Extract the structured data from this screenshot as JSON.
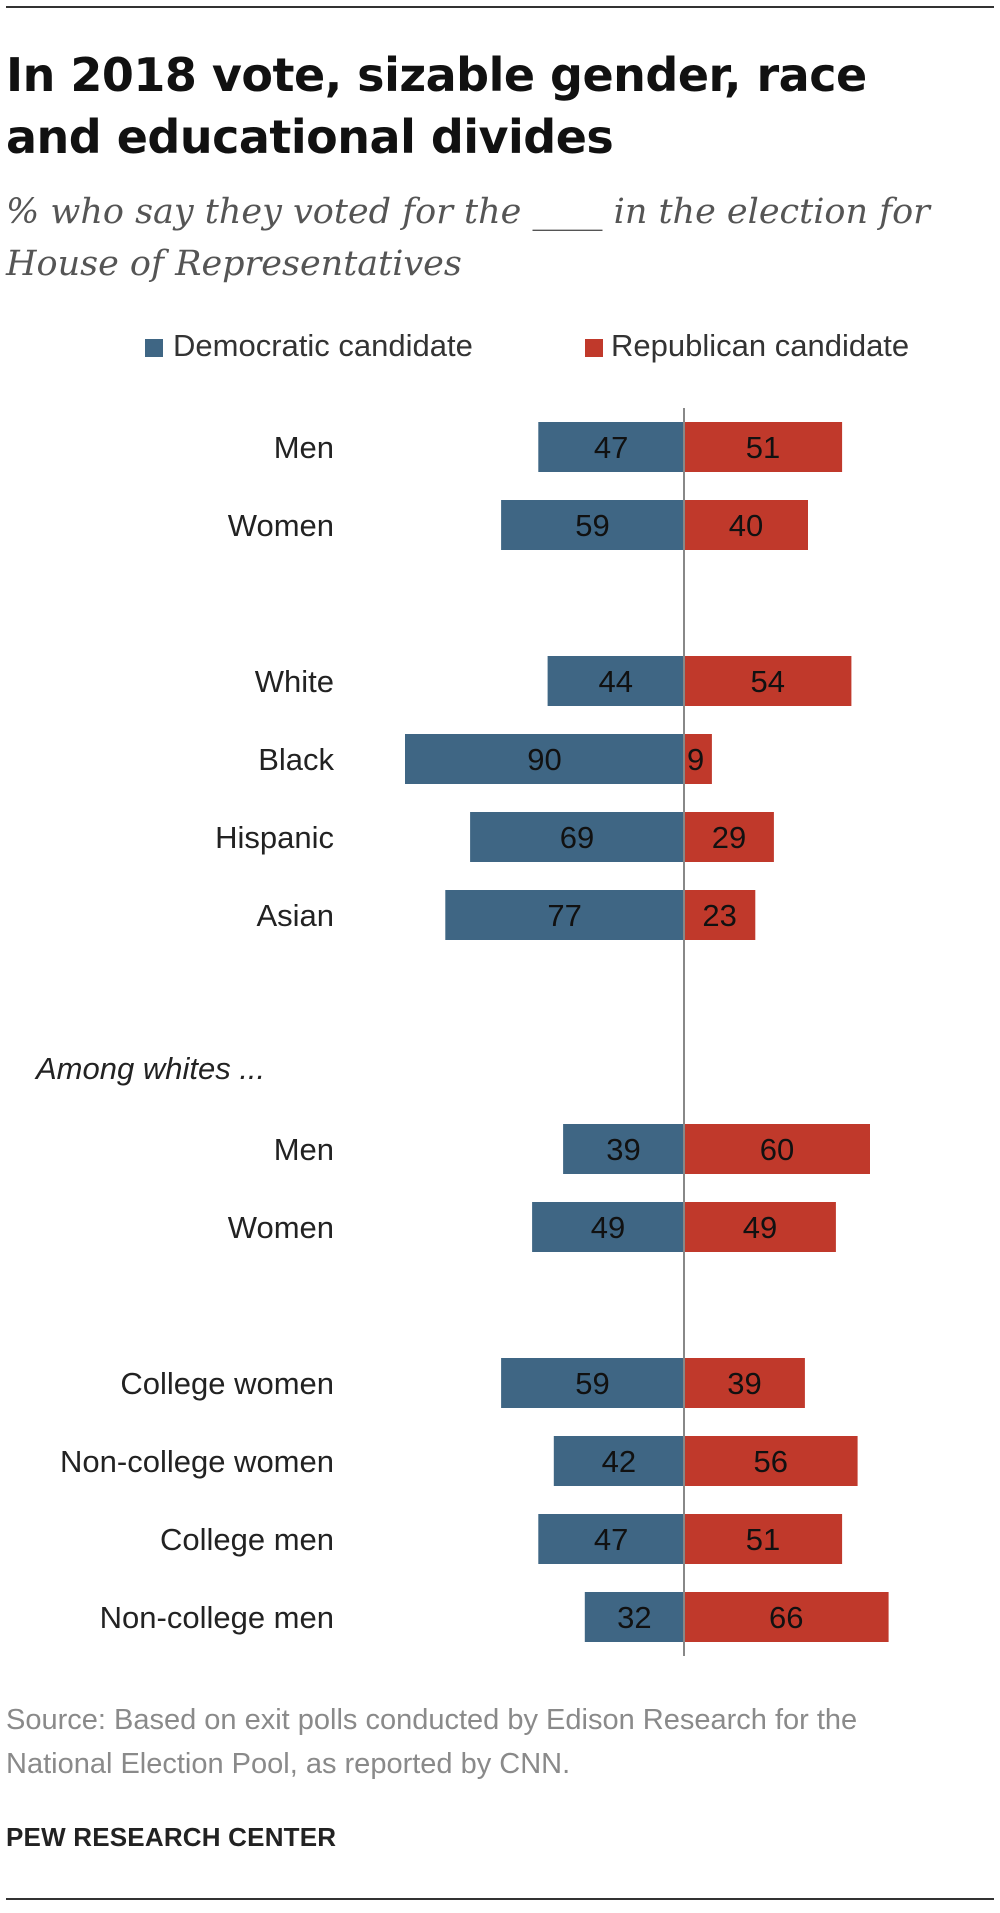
{
  "header": {
    "title": "In 2018 vote, sizable gender, race and educational divides",
    "subtitle": "% who say they voted for the ____ in the election for House of Representatives"
  },
  "chart_data": {
    "type": "bar",
    "orientation": "horizontal-diverging",
    "legend": [
      {
        "name": "Democratic candidate",
        "color": "#3f6684"
      },
      {
        "name": "Republican candidate",
        "color": "#c0392b"
      }
    ],
    "groups": [
      {
        "heading": "",
        "rows": [
          {
            "label": "Men",
            "dem": 47,
            "rep": 51
          },
          {
            "label": "Women",
            "dem": 59,
            "rep": 40
          }
        ]
      },
      {
        "heading": "",
        "rows": [
          {
            "label": "White",
            "dem": 44,
            "rep": 54
          },
          {
            "label": "Black",
            "dem": 90,
            "rep": 9
          },
          {
            "label": "Hispanic",
            "dem": 69,
            "rep": 29
          },
          {
            "label": "Asian",
            "dem": 77,
            "rep": 23
          }
        ]
      },
      {
        "heading": "Among whites ...",
        "rows": [
          {
            "label": "Men",
            "dem": 39,
            "rep": 60
          },
          {
            "label": "Women",
            "dem": 49,
            "rep": 49
          }
        ]
      },
      {
        "heading": "",
        "rows": [
          {
            "label": "College women",
            "dem": 59,
            "rep": 39
          },
          {
            "label": "Non-college women",
            "dem": 42,
            "rep": 56
          },
          {
            "label": "College men",
            "dem": 47,
            "rep": 51
          },
          {
            "label": "Non-college men",
            "dem": 32,
            "rep": 66
          }
        ]
      }
    ]
  },
  "footer": {
    "source": "Source: Based on exit polls conducted by Edison Research for the National Election Pool, as reported by CNN.",
    "credit": "PEW RESEARCH CENTER"
  }
}
